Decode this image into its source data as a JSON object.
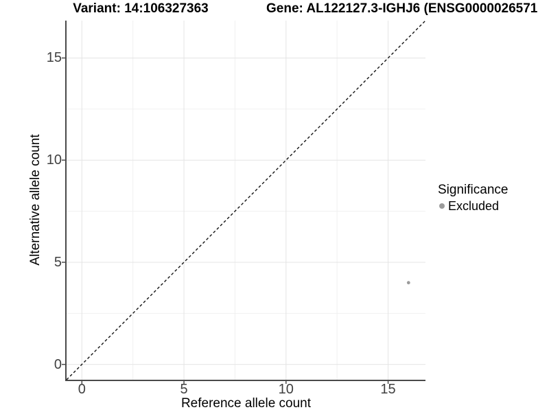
{
  "titles": {
    "variant": "Variant: 14:106327363",
    "gene": "Gene: AL122127.3-IGHJ6 (ENSG0000026571"
  },
  "chart_data": {
    "type": "scatter",
    "title_left": "Variant: 14:106327363",
    "title_right": "Gene: AL122127.3-IGHJ6 (ENSG0000026571",
    "xlabel": "Reference allele count",
    "ylabel": "Alternative allele count",
    "xlim": [
      -0.75,
      16.83
    ],
    "ylim": [
      -0.75,
      16.83
    ],
    "x_ticks": [
      0,
      5,
      10,
      15
    ],
    "y_ticks": [
      0,
      5,
      10,
      15
    ],
    "x_minor_ticks": [
      2.5,
      7.5,
      12.5
    ],
    "y_minor_ticks": [
      2.5,
      7.5,
      12.5
    ],
    "grid": "major+minor",
    "legend_position": "right",
    "legend_title": "Significance",
    "series": [
      {
        "name": "Excluded",
        "color": "#9b9b9b",
        "points": [
          {
            "x": 16,
            "y": 4
          }
        ]
      }
    ],
    "reference_line": {
      "type": "identity",
      "style": "dashed",
      "color": "#111111"
    }
  },
  "colors": {
    "axis_line": "#4a4a4a",
    "grid_major": "#e4e4e4",
    "grid_minor": "#f0f0f0",
    "tick_text": "#404040",
    "point": "#9b9b9b"
  }
}
